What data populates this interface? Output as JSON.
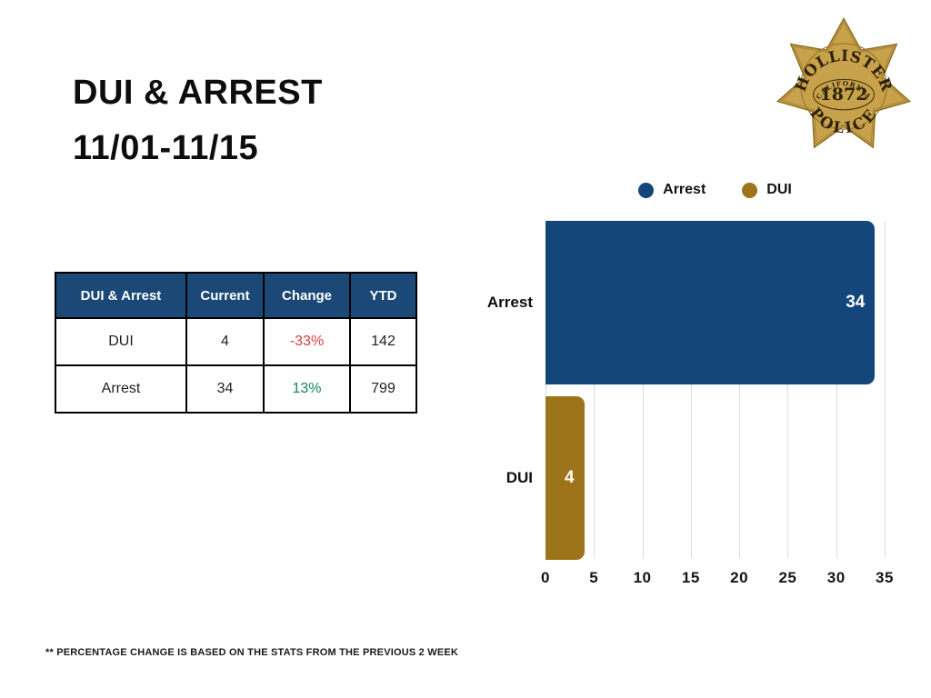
{
  "title": {
    "line1": "DUI & ARREST",
    "line2": "11/01-11/15"
  },
  "badge": {
    "name": "HOLLISTER",
    "state": "CALIFORNIA",
    "year": "1872",
    "label": "POLICE",
    "gold_color": "#c8a24b"
  },
  "table": {
    "headers": [
      "DUI & Arrest",
      "Current",
      "Change",
      "YTD"
    ],
    "rows": [
      {
        "label": "DUI",
        "current": "4",
        "change": "-33%",
        "change_color": "#dc3c3c",
        "ytd": "142"
      },
      {
        "label": "Arrest",
        "current": "34",
        "change": "13%",
        "change_color": "#12855a",
        "ytd": "799"
      }
    ],
    "header_bg": "#1b4876"
  },
  "chart_data": {
    "type": "bar",
    "orientation": "horizontal",
    "title": "",
    "categories": [
      "Arrest",
      "DUI"
    ],
    "values": [
      34,
      4
    ],
    "series_colors": [
      "#134679",
      "#9e741b"
    ],
    "legend": [
      {
        "label": "Arrest",
        "color": "#134679"
      },
      {
        "label": "DUI",
        "color": "#9e741b"
      }
    ],
    "legend_position": "top",
    "x_ticks": [
      0,
      5,
      10,
      15,
      20,
      25,
      30,
      35
    ],
    "xlim": [
      0,
      35
    ],
    "grid": true,
    "gridline_color": "#dcdcdc",
    "bar_label_color": "#ffffff"
  },
  "footer": {
    "note": "** PERCENTAGE CHANGE IS BASED ON THE STATS FROM THE PREVIOUS 2 WEEK"
  }
}
